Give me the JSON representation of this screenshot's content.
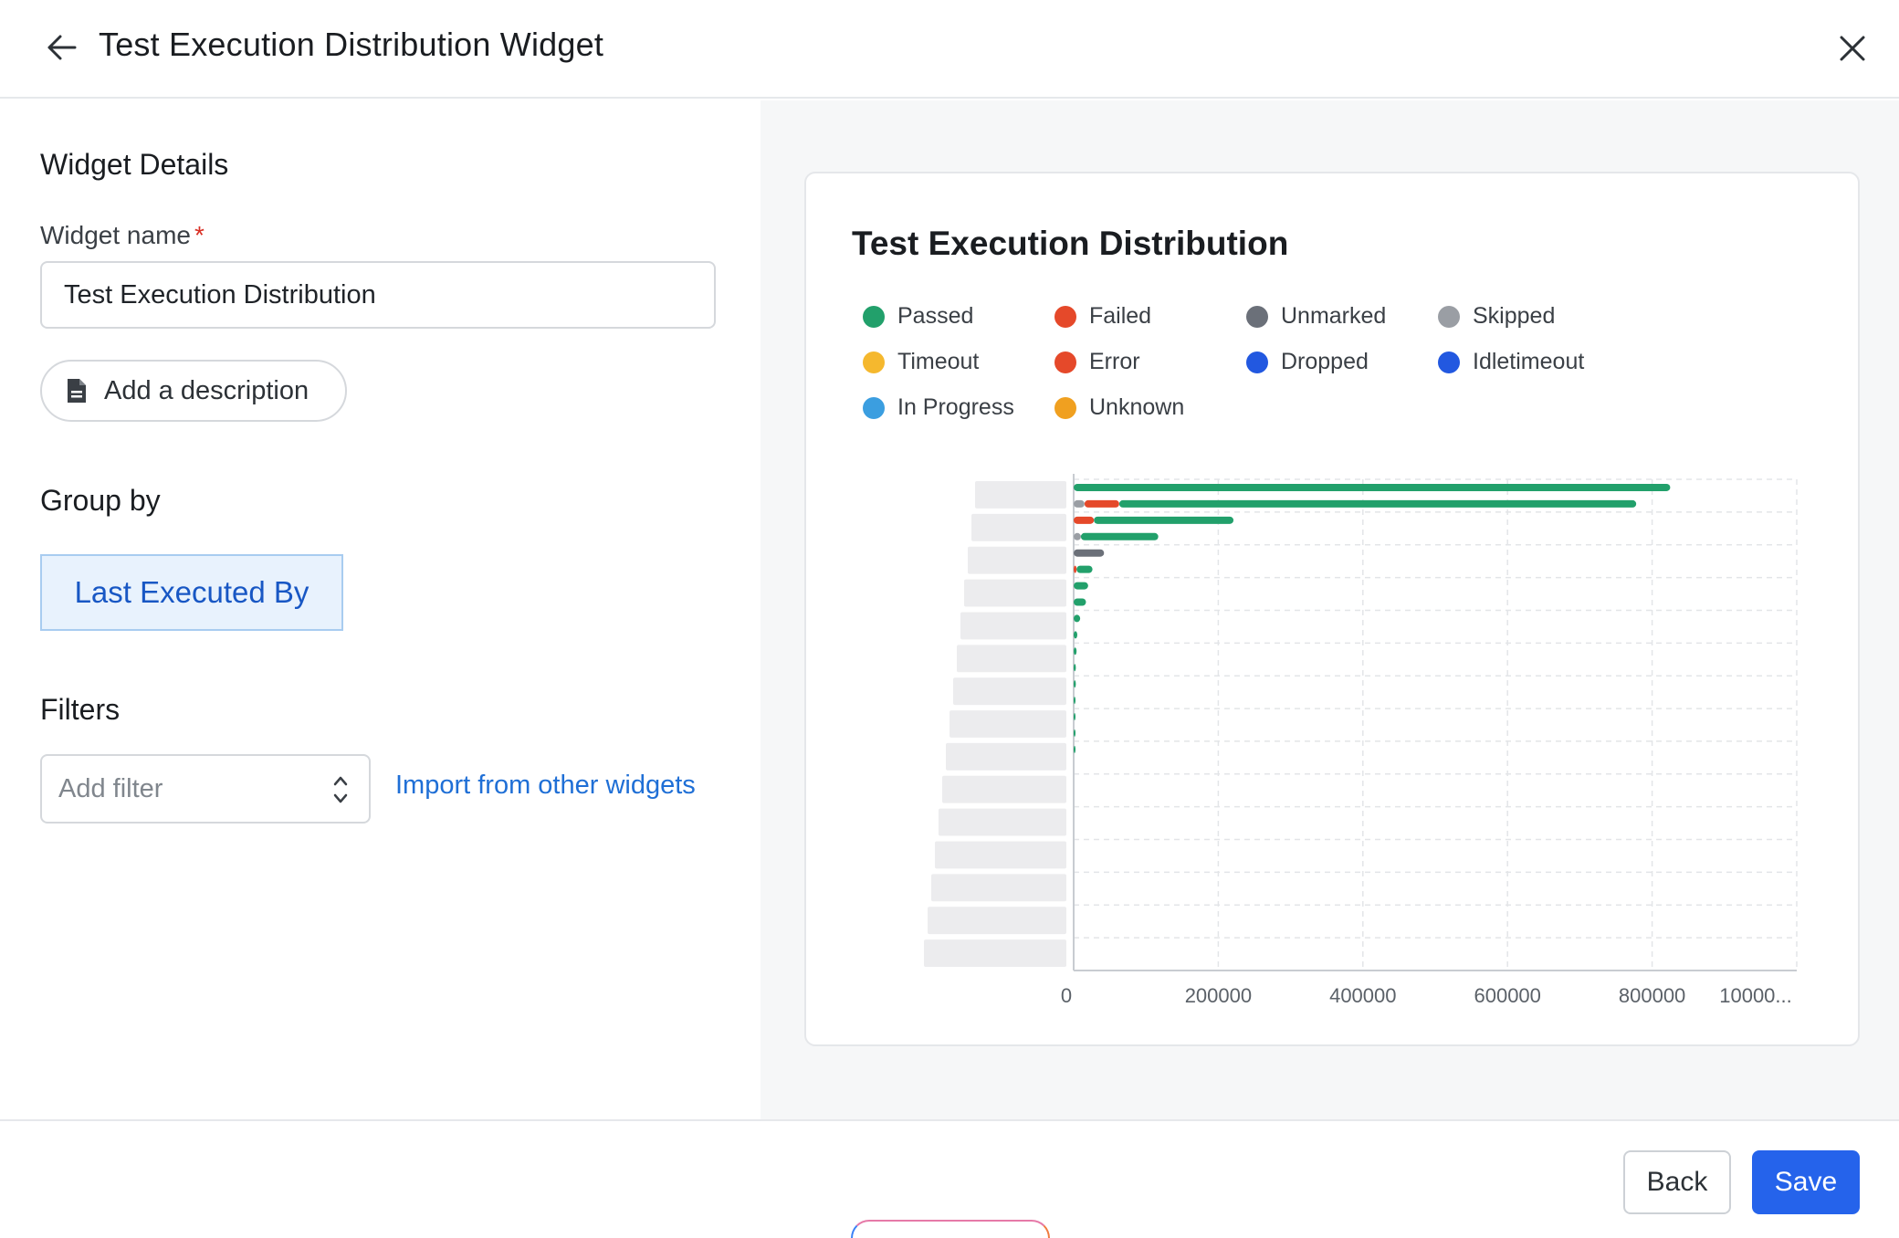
{
  "header": {
    "title": "Test Execution Distribution Widget"
  },
  "details": {
    "section_title": "Widget Details",
    "name_label": "Widget name",
    "required_mark": "*",
    "name_value": "Test Execution Distribution",
    "add_description_label": "Add a description"
  },
  "group_by": {
    "section_title": "Group by",
    "selected": "Last Executed By"
  },
  "filters": {
    "section_title": "Filters",
    "placeholder": "Add filter",
    "import_link": "Import from other widgets"
  },
  "preview": {
    "title": "Test Execution Distribution",
    "legend": [
      {
        "label": "Passed",
        "color": "#22a06b"
      },
      {
        "label": "Failed",
        "color": "#e5492a"
      },
      {
        "label": "Unmarked",
        "color": "#6b7079"
      },
      {
        "label": "Skipped",
        "color": "#9a9ea4"
      },
      {
        "label": "Timeout",
        "color": "#f5b82e"
      },
      {
        "label": "Error",
        "color": "#e5492a"
      },
      {
        "label": "Dropped",
        "color": "#2258e0"
      },
      {
        "label": "Idletimeout",
        "color": "#2258e0"
      },
      {
        "label": "In Progress",
        "color": "#3b9ee0"
      },
      {
        "label": "Unknown",
        "color": "#f0a020"
      }
    ]
  },
  "chart_data": {
    "type": "bar",
    "orientation": "horizontal",
    "stacked": true,
    "title": "Test Execution Distribution",
    "categories_note": "category labels are blurred/redacted",
    "xlim": [
      0,
      1000000
    ],
    "x_ticks": [
      "0",
      "200000",
      "400000",
      "600000",
      "800000",
      "10000..."
    ],
    "grid": true,
    "legend_position": "top",
    "series": [
      {
        "name": "Skipped",
        "values": [
          0,
          15000,
          0,
          10000,
          0,
          0,
          0,
          0,
          0,
          0,
          0,
          0,
          0,
          0,
          0,
          0,
          0,
          0,
          0,
          0,
          0,
          0,
          0,
          0,
          0,
          0,
          0,
          0,
          0,
          0
        ]
      },
      {
        "name": "Failed",
        "values": [
          0,
          48000,
          28000,
          0,
          0,
          4000,
          0,
          0,
          0,
          0,
          0,
          0,
          0,
          0,
          0,
          0,
          0,
          0,
          0,
          0,
          0,
          0,
          0,
          0,
          0,
          0,
          0,
          0,
          0,
          0
        ]
      },
      {
        "name": "Unmarked",
        "values": [
          0,
          0,
          0,
          0,
          42000,
          0,
          0,
          0,
          0,
          0,
          0,
          0,
          0,
          0,
          0,
          0,
          0,
          0,
          0,
          0,
          0,
          0,
          0,
          0,
          0,
          0,
          0,
          0,
          0,
          0
        ]
      },
      {
        "name": "Passed",
        "values": [
          825000,
          715000,
          193000,
          107000,
          0,
          22000,
          20000,
          17000,
          9000,
          5000,
          4000,
          3000,
          3000,
          2500,
          2000,
          2000,
          1500,
          0,
          0,
          0,
          0,
          0,
          0,
          0,
          0,
          0,
          0,
          0,
          0,
          0
        ]
      }
    ]
  }
}
